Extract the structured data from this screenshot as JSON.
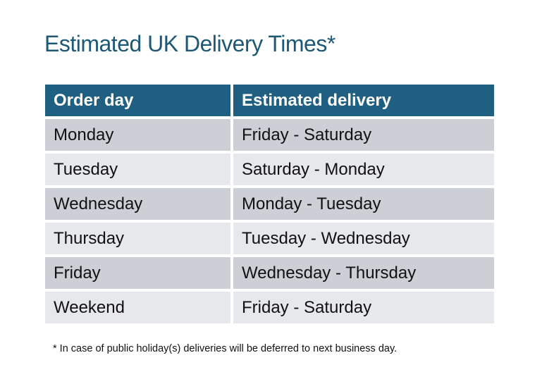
{
  "title": "Estimated UK Delivery Times*",
  "table": {
    "headers": [
      "Order day",
      "Estimated delivery"
    ],
    "rows": [
      [
        "Monday",
        "Friday - Saturday"
      ],
      [
        "Tuesday",
        "Saturday - Monday"
      ],
      [
        "Wednesday",
        "Monday - Tuesday"
      ],
      [
        "Thursday",
        "Tuesday - Wednesday"
      ],
      [
        "Friday",
        "Wednesday - Thursday"
      ],
      [
        "Weekend",
        "Friday - Saturday"
      ]
    ]
  },
  "footnote": "* In case of public holiday(s) deliveries will be deferred to next business day.",
  "colors": {
    "header_bg": "#1f5f82",
    "row_dark": "#ccd0d6",
    "row_light": "#e6e8eb",
    "title": "#1d5876"
  }
}
